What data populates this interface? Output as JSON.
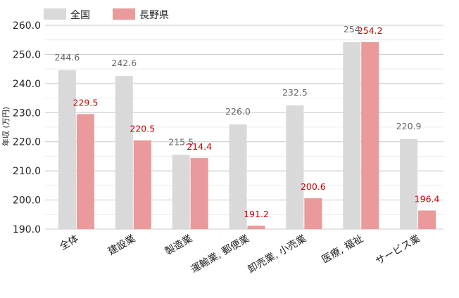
{
  "chart_data": {
    "type": "bar",
    "categories": [
      "全体",
      "建設業",
      "製造業",
      "運輸業, 郵便業",
      "卸売業, 小売業",
      "医療, 福祉",
      "サービス業"
    ],
    "series": [
      {
        "name": "全国",
        "values": [
          244.6,
          242.6,
          215.5,
          226.0,
          232.5,
          254.2,
          220.9
        ],
        "labels": [
          "244.6",
          "242.6",
          "215.5",
          "226.0",
          "232.5",
          "254",
          "220.9"
        ]
      },
      {
        "name": "長野県",
        "values": [
          229.5,
          220.5,
          214.4,
          191.2,
          200.6,
          254.2,
          196.4
        ],
        "labels": [
          "229.5",
          "220.5",
          "214.4",
          "191.2",
          "200.6",
          "254.2",
          "196.4"
        ]
      }
    ],
    "ylabel": "年収 (万円)",
    "ylim": [
      190,
      260
    ],
    "yticks": [
      "190.0",
      "200.0",
      "210.0",
      "220.0",
      "230.0",
      "240.0",
      "250.0",
      "260.0"
    ],
    "grid": true,
    "legend_position": "top-left",
    "colors": {
      "series": [
        "#d9d9d9",
        "#ea9a9a"
      ],
      "label_text": [
        "#666666",
        "#cc0000"
      ],
      "grid": "#d0d0d0"
    }
  }
}
